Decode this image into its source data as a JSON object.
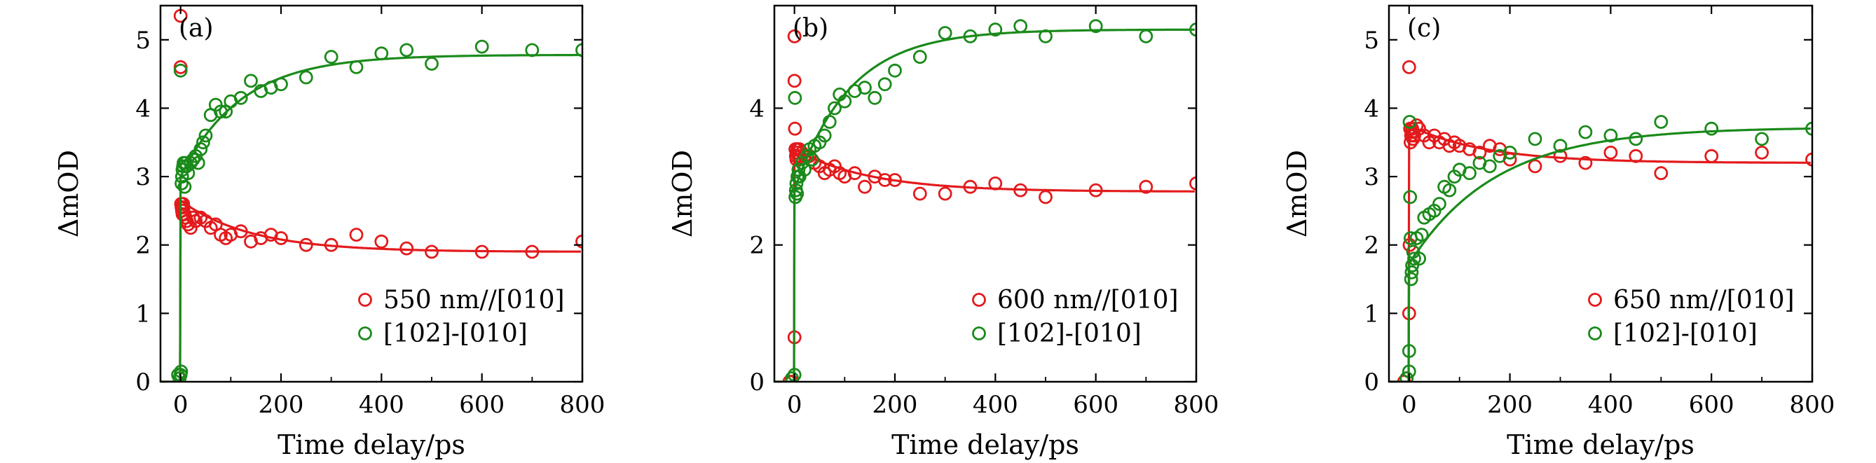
{
  "colors": {
    "red": "#e31a1c",
    "green": "#1a8a1a",
    "axis": "#000000"
  },
  "chart_data": [
    {
      "type": "scatter",
      "panel_label": "(a)",
      "xlabel": "Time delay/ps",
      "ylabel": "ΔmOD",
      "xlim": [
        -40,
        800
      ],
      "ylim": [
        0,
        5.5
      ],
      "xticks": [
        "0",
        "200",
        "400",
        "600",
        "800"
      ],
      "xtick_values": [
        0,
        200,
        400,
        600,
        800
      ],
      "yticks": [
        "0",
        "1",
        "2",
        "3",
        "4",
        "5"
      ],
      "ytick_values": [
        0,
        1,
        2,
        3,
        4,
        5
      ],
      "legend_position": "bottom-right",
      "series": [
        {
          "name": "550 nm//[010]",
          "color": "red",
          "points": [
            [
              -2,
              0.05
            ],
            [
              0,
              5.35
            ],
            [
              0,
              4.6
            ],
            [
              1,
              2.6
            ],
            [
              2,
              2.55
            ],
            [
              3,
              2.5
            ],
            [
              4,
              2.45
            ],
            [
              5,
              2.6
            ],
            [
              6,
              2.55
            ],
            [
              8,
              2.45
            ],
            [
              10,
              2.4
            ],
            [
              12,
              2.35
            ],
            [
              15,
              2.3
            ],
            [
              20,
              2.25
            ],
            [
              25,
              2.4
            ],
            [
              30,
              2.35
            ],
            [
              40,
              2.4
            ],
            [
              50,
              2.35
            ],
            [
              60,
              2.25
            ],
            [
              70,
              2.3
            ],
            [
              80,
              2.15
            ],
            [
              90,
              2.1
            ],
            [
              100,
              2.15
            ],
            [
              120,
              2.2
            ],
            [
              140,
              2.05
            ],
            [
              160,
              2.1
            ],
            [
              180,
              2.15
            ],
            [
              200,
              2.1
            ],
            [
              250,
              2.0
            ],
            [
              300,
              2.0
            ],
            [
              350,
              2.15
            ],
            [
              400,
              2.05
            ],
            [
              450,
              1.95
            ],
            [
              500,
              1.9
            ],
            [
              600,
              1.9
            ],
            [
              700,
              1.9
            ],
            [
              800,
              2.05
            ]
          ],
          "fit": {
            "baseline": 1.9,
            "amplitude": 0.75,
            "tau": 140
          }
        },
        {
          "name": "[102]-[010]",
          "color": "green",
          "points": [
            [
              -5,
              0.1
            ],
            [
              -2,
              0.05
            ],
            [
              0,
              0.1
            ],
            [
              1,
              0.15
            ],
            [
              0,
              4.55
            ],
            [
              2,
              2.9
            ],
            [
              3,
              3.0
            ],
            [
              4,
              3.1
            ],
            [
              5,
              3.15
            ],
            [
              6,
              3.2
            ],
            [
              8,
              2.85
            ],
            [
              10,
              3.2
            ],
            [
              12,
              3.15
            ],
            [
              15,
              3.05
            ],
            [
              20,
              3.2
            ],
            [
              25,
              3.25
            ],
            [
              30,
              3.3
            ],
            [
              35,
              3.2
            ],
            [
              40,
              3.4
            ],
            [
              45,
              3.5
            ],
            [
              50,
              3.6
            ],
            [
              60,
              3.9
            ],
            [
              70,
              4.05
            ],
            [
              80,
              3.95
            ],
            [
              90,
              3.95
            ],
            [
              100,
              4.1
            ],
            [
              120,
              4.15
            ],
            [
              140,
              4.4
            ],
            [
              160,
              4.25
            ],
            [
              180,
              4.3
            ],
            [
              200,
              4.35
            ],
            [
              250,
              4.45
            ],
            [
              300,
              4.75
            ],
            [
              350,
              4.6
            ],
            [
              400,
              4.8
            ],
            [
              450,
              4.85
            ],
            [
              500,
              4.65
            ],
            [
              600,
              4.9
            ],
            [
              700,
              4.85
            ],
            [
              800,
              4.85
            ]
          ],
          "fit": {
            "baseline": 4.78,
            "amplitude": -1.78,
            "tau": 120
          }
        }
      ]
    },
    {
      "type": "scatter",
      "panel_label": "(b)",
      "xlabel": "Time delay/ps",
      "ylabel": "ΔmOD",
      "xlim": [
        -40,
        800
      ],
      "ylim": [
        0,
        5.5
      ],
      "xticks": [
        "0",
        "200",
        "400",
        "600",
        "800"
      ],
      "xtick_values": [
        0,
        200,
        400,
        600,
        800
      ],
      "yticks": [
        "0",
        "2",
        "4"
      ],
      "ytick_values": [
        0,
        2,
        4
      ],
      "legend_position": "bottom-right",
      "series": [
        {
          "name": "600 nm//[010]",
          "color": "red",
          "points": [
            [
              -10,
              0.0
            ],
            [
              -5,
              0.0
            ],
            [
              0,
              0.65
            ],
            [
              0,
              5.05
            ],
            [
              0,
              4.4
            ],
            [
              1,
              3.7
            ],
            [
              2,
              3.4
            ],
            [
              3,
              3.3
            ],
            [
              4,
              3.25
            ],
            [
              5,
              3.35
            ],
            [
              6,
              3.4
            ],
            [
              8,
              3.3
            ],
            [
              10,
              3.4
            ],
            [
              15,
              3.35
            ],
            [
              20,
              3.3
            ],
            [
              30,
              3.3
            ],
            [
              40,
              3.2
            ],
            [
              50,
              3.15
            ],
            [
              60,
              3.05
            ],
            [
              70,
              3.1
            ],
            [
              80,
              3.15
            ],
            [
              90,
              3.05
            ],
            [
              100,
              3.0
            ],
            [
              120,
              3.05
            ],
            [
              140,
              2.85
            ],
            [
              160,
              3.0
            ],
            [
              180,
              2.95
            ],
            [
              200,
              2.95
            ],
            [
              250,
              2.75
            ],
            [
              300,
              2.75
            ],
            [
              350,
              2.85
            ],
            [
              400,
              2.9
            ],
            [
              450,
              2.8
            ],
            [
              500,
              2.7
            ],
            [
              600,
              2.8
            ],
            [
              700,
              2.85
            ],
            [
              800,
              2.9
            ]
          ],
          "fit": {
            "baseline": 2.78,
            "amplitude": 0.62,
            "tau": 150
          }
        },
        {
          "name": "[102]-[010]",
          "color": "green",
          "points": [
            [
              -5,
              0.05
            ],
            [
              0,
              0.1
            ],
            [
              1,
              4.15
            ],
            [
              2,
              2.7
            ],
            [
              3,
              2.8
            ],
            [
              4,
              2.9
            ],
            [
              5,
              2.75
            ],
            [
              6,
              3.0
            ],
            [
              8,
              3.1
            ],
            [
              10,
              3.0
            ],
            [
              15,
              3.2
            ],
            [
              20,
              3.1
            ],
            [
              25,
              3.3
            ],
            [
              30,
              3.4
            ],
            [
              35,
              3.25
            ],
            [
              40,
              3.45
            ],
            [
              50,
              3.5
            ],
            [
              60,
              3.6
            ],
            [
              70,
              3.8
            ],
            [
              80,
              4.0
            ],
            [
              90,
              4.2
            ],
            [
              100,
              4.1
            ],
            [
              120,
              4.25
            ],
            [
              140,
              4.3
            ],
            [
              160,
              4.15
            ],
            [
              180,
              4.35
            ],
            [
              200,
              4.55
            ],
            [
              250,
              4.75
            ],
            [
              300,
              5.1
            ],
            [
              350,
              5.05
            ],
            [
              400,
              5.15
            ],
            [
              450,
              5.2
            ],
            [
              500,
              5.05
            ],
            [
              600,
              5.2
            ],
            [
              700,
              5.05
            ],
            [
              800,
              5.15
            ]
          ],
          "fit": {
            "baseline": 5.15,
            "amplitude": -2.35,
            "tau": 110
          }
        }
      ]
    },
    {
      "type": "scatter",
      "panel_label": "(c)",
      "xlabel": "Time delay/ps",
      "ylabel": "ΔmOD",
      "xlim": [
        -40,
        800
      ],
      "ylim": [
        0,
        5.5
      ],
      "xticks": [
        "0",
        "200",
        "400",
        "600",
        "800"
      ],
      "xtick_values": [
        0,
        200,
        400,
        600,
        800
      ],
      "yticks": [
        "0",
        "1",
        "2",
        "3",
        "4",
        "5"
      ],
      "ytick_values": [
        0,
        1,
        2,
        3,
        4,
        5
      ],
      "legend_position": "bottom-right",
      "series": [
        {
          "name": "650 nm//[010]",
          "color": "red",
          "points": [
            [
              -10,
              0.0
            ],
            [
              -5,
              0.05
            ],
            [
              0,
              1.0
            ],
            [
              1,
              2.0
            ],
            [
              0,
              4.6
            ],
            [
              2,
              3.7
            ],
            [
              3,
              3.5
            ],
            [
              4,
              3.6
            ],
            [
              5,
              3.65
            ],
            [
              6,
              3.7
            ],
            [
              8,
              3.55
            ],
            [
              10,
              3.6
            ],
            [
              15,
              3.75
            ],
            [
              20,
              3.7
            ],
            [
              30,
              3.6
            ],
            [
              40,
              3.5
            ],
            [
              50,
              3.6
            ],
            [
              60,
              3.5
            ],
            [
              70,
              3.55
            ],
            [
              80,
              3.45
            ],
            [
              90,
              3.5
            ],
            [
              100,
              3.45
            ],
            [
              120,
              3.4
            ],
            [
              140,
              3.35
            ],
            [
              160,
              3.45
            ],
            [
              180,
              3.4
            ],
            [
              200,
              3.25
            ],
            [
              250,
              3.15
            ],
            [
              300,
              3.3
            ],
            [
              350,
              3.2
            ],
            [
              400,
              3.35
            ],
            [
              450,
              3.3
            ],
            [
              500,
              3.05
            ],
            [
              600,
              3.3
            ],
            [
              700,
              3.35
            ],
            [
              800,
              3.25
            ]
          ],
          "fit": {
            "baseline": 3.2,
            "amplitude": 0.55,
            "tau": 150
          }
        },
        {
          "name": "[102]-[010]",
          "color": "green",
          "points": [
            [
              -5,
              0.05
            ],
            [
              0,
              0.15
            ],
            [
              0,
              0.45
            ],
            [
              1,
              3.8
            ],
            [
              2,
              2.7
            ],
            [
              3,
              2.1
            ],
            [
              4,
              1.5
            ],
            [
              5,
              1.6
            ],
            [
              6,
              1.7
            ],
            [
              8,
              1.9
            ],
            [
              10,
              1.8
            ],
            [
              15,
              2.1
            ],
            [
              20,
              1.8
            ],
            [
              25,
              2.15
            ],
            [
              30,
              2.4
            ],
            [
              40,
              2.45
            ],
            [
              50,
              2.5
            ],
            [
              60,
              2.6
            ],
            [
              70,
              2.85
            ],
            [
              80,
              2.8
            ],
            [
              90,
              3.0
            ],
            [
              100,
              3.1
            ],
            [
              120,
              3.05
            ],
            [
              140,
              3.2
            ],
            [
              160,
              3.15
            ],
            [
              180,
              3.3
            ],
            [
              200,
              3.35
            ],
            [
              250,
              3.55
            ],
            [
              300,
              3.45
            ],
            [
              350,
              3.65
            ],
            [
              400,
              3.6
            ],
            [
              450,
              3.55
            ],
            [
              500,
              3.8
            ],
            [
              600,
              3.7
            ],
            [
              700,
              3.55
            ],
            [
              800,
              3.7
            ]
          ],
          "fit": {
            "baseline": 3.72,
            "amplitude": -2.0,
            "tau": 170
          }
        }
      ]
    }
  ]
}
